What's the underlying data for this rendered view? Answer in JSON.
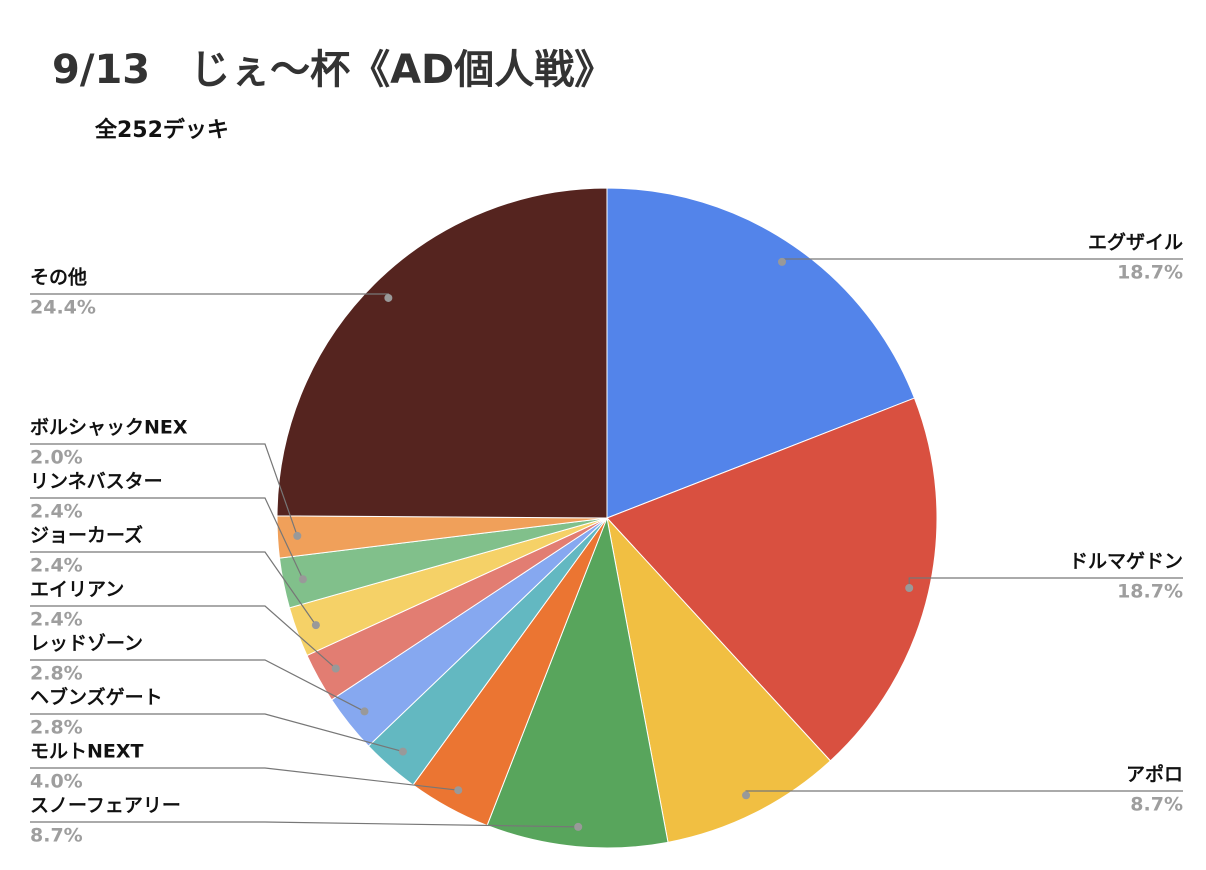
{
  "chart_data": {
    "type": "pie",
    "title": "9/13　じぇ〜杯《AD個人戦》",
    "subtitle": "全252デッキ",
    "categories": [
      "エグザイル",
      "ドルマゲドン",
      "アポロ",
      "スノーフェアリー",
      "モルトNEXT",
      "ヘブンズゲート",
      "レッドゾーン",
      "エイリアン",
      "ジョーカーズ",
      "リンネバスター",
      "ボルシャックNEX",
      "その他"
    ],
    "values": [
      18.7,
      18.7,
      8.7,
      8.7,
      4.0,
      2.8,
      2.8,
      2.4,
      2.4,
      2.4,
      2.0,
      24.4
    ],
    "value_labels": [
      "18.7%",
      "18.7%",
      "8.7%",
      "8.7%",
      "4.0%",
      "2.8%",
      "2.8%",
      "2.4%",
      "2.4%",
      "2.4%",
      "2.0%",
      "24.4%"
    ],
    "colors": [
      "#5384ea",
      "#d95040",
      "#f1bf42",
      "#58a55c",
      "#eb7532",
      "#63b8c1",
      "#86a8f0",
      "#e27d72",
      "#f5d167",
      "#81c08b",
      "#f0a05a",
      "#95d1d8",
      "#55241f"
    ]
  }
}
